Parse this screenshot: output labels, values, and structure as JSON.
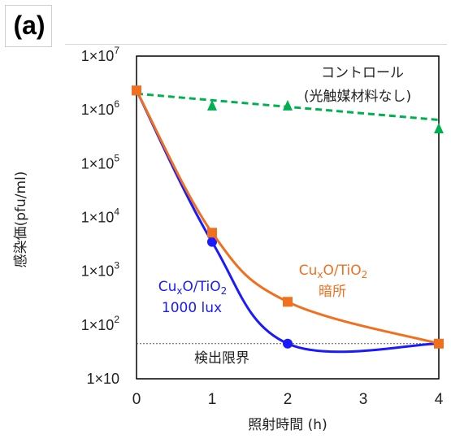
{
  "panel_label": "(a)",
  "chart_data": {
    "type": "line",
    "title": "",
    "xlabel": "照射時間 (h)",
    "ylabel": "感染価(pfu/ml)",
    "x": [
      0,
      1,
      2,
      4
    ],
    "xticks": [
      "0",
      "1",
      "2",
      "3",
      "4"
    ],
    "xlim": [
      0,
      4
    ],
    "yscale": "log",
    "ylim": [
      10,
      10000000
    ],
    "yticks": [
      {
        "base": "1×10",
        "exp": "7"
      },
      {
        "base": "1×10",
        "exp": "6"
      },
      {
        "base": "1×10",
        "exp": "5"
      },
      {
        "base": "1×10",
        "exp": "4"
      },
      {
        "base": "1×10",
        "exp": "3"
      },
      {
        "base": "1×10",
        "exp": "2"
      },
      {
        "base": "1×10",
        "exp": ""
      }
    ],
    "grid": false,
    "detection_limit": {
      "value": 45,
      "label": "検出限界"
    },
    "series": [
      {
        "name": "コントロール(光触媒材料なし)",
        "color": "#00b050",
        "marker": "triangle",
        "points": [
          {
            "x": 0,
            "y": 2300000
          },
          {
            "x": 1,
            "y": 1200000
          },
          {
            "x": 2,
            "y": 1200000
          },
          {
            "x": 4,
            "y": 450000
          }
        ],
        "fit": [
          {
            "x": 0,
            "y": 2000000
          },
          {
            "x": 4,
            "y": 650000
          }
        ]
      },
      {
        "name": "CuxO/TiO2 1000 lux",
        "color": "#1a1aff",
        "marker": "circle",
        "points": [
          {
            "x": 0,
            "y": 2300000
          },
          {
            "x": 1,
            "y": 3500
          },
          {
            "x": 2,
            "y": 45
          },
          {
            "x": 4,
            "y": 45
          }
        ]
      },
      {
        "name": "CuxO/TiO2 暗所",
        "color": "#f07020",
        "marker": "square",
        "points": [
          {
            "x": 0,
            "y": 2300000
          },
          {
            "x": 1,
            "y": 5200
          },
          {
            "x": 2,
            "y": 270
          },
          {
            "x": 4,
            "y": 45
          }
        ]
      }
    ],
    "annotations": {
      "control_line1": "コントロール",
      "control_line2": "(光触媒材料なし)",
      "light_line1_main": "Cu",
      "light_line1_sub": "x",
      "light_line1_rest": "O/TiO",
      "light_line1_sub2": "2",
      "light_line2": "1000 lux",
      "dark_line1_main": "Cu",
      "dark_line1_sub": "x",
      "dark_line1_rest": "O/TiO",
      "dark_line1_sub2": "2",
      "dark_line2": "暗所"
    }
  }
}
